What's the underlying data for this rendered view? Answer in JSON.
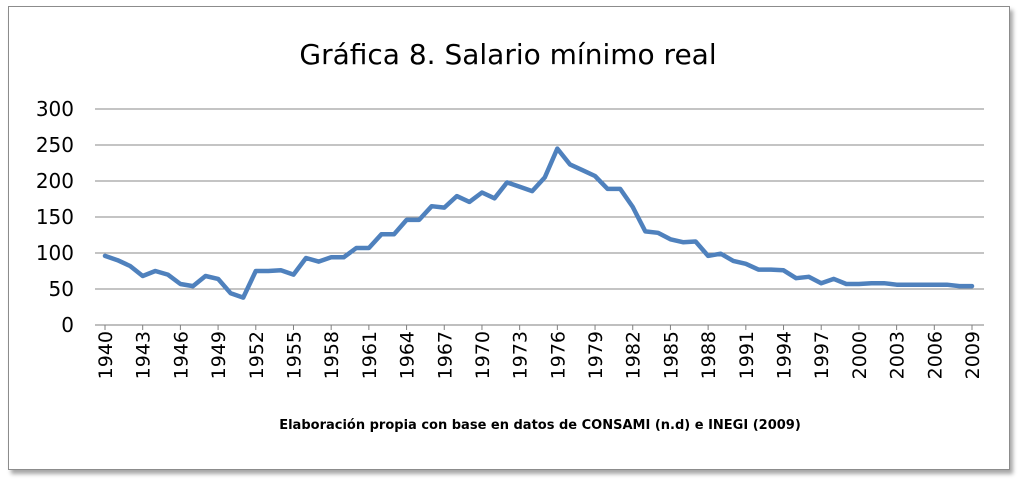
{
  "chart_data": {
    "type": "line",
    "title": "Gráfica 8. Salario mínimo real",
    "caption": "Elaboración propia con base en datos de CONSAMI (n.d) e INEGI (2009)",
    "xlabel": "",
    "ylabel": "",
    "ylim": [
      0,
      300
    ],
    "y_ticks": [
      0,
      50,
      100,
      150,
      200,
      250,
      300
    ],
    "x_tick_labels": [
      "1940",
      "1943",
      "1946",
      "1949",
      "1952",
      "1955",
      "1958",
      "1961",
      "1964",
      "1967",
      "1970",
      "1973",
      "1976",
      "1979",
      "1982",
      "1985",
      "1988",
      "1991",
      "1994",
      "1997",
      "2000",
      "2003",
      "2006",
      "2009"
    ],
    "grid": true,
    "legend": "none",
    "color": "#4f81bd",
    "x": [
      1940,
      1941,
      1942,
      1943,
      1944,
      1945,
      1946,
      1947,
      1948,
      1949,
      1950,
      1951,
      1952,
      1953,
      1954,
      1955,
      1956,
      1957,
      1958,
      1959,
      1960,
      1961,
      1962,
      1963,
      1964,
      1965,
      1966,
      1967,
      1968,
      1969,
      1970,
      1971,
      1972,
      1973,
      1974,
      1975,
      1976,
      1977,
      1978,
      1979,
      1980,
      1981,
      1982,
      1983,
      1984,
      1985,
      1986,
      1987,
      1988,
      1989,
      1990,
      1991,
      1992,
      1993,
      1994,
      1995,
      1996,
      1997,
      1998,
      1999,
      2000,
      2001,
      2002,
      2003,
      2004,
      2005,
      2006,
      2007,
      2008,
      2009
    ],
    "series": [
      {
        "values": [
          96,
          90,
          82,
          68,
          75,
          70,
          57,
          54,
          68,
          64,
          44,
          38,
          75,
          75,
          76,
          70,
          93,
          88,
          94,
          94,
          107,
          107,
          126,
          126,
          146,
          146,
          165,
          163,
          179,
          171,
          184,
          176,
          198,
          192,
          186,
          205,
          245,
          223,
          215,
          207,
          189,
          189,
          164,
          130,
          128,
          119,
          115,
          116,
          96,
          99,
          89,
          85,
          77,
          77,
          76,
          65,
          67,
          58,
          64,
          57,
          57,
          58,
          58,
          56,
          56,
          56,
          56,
          56,
          54,
          54
        ]
      }
    ]
  }
}
